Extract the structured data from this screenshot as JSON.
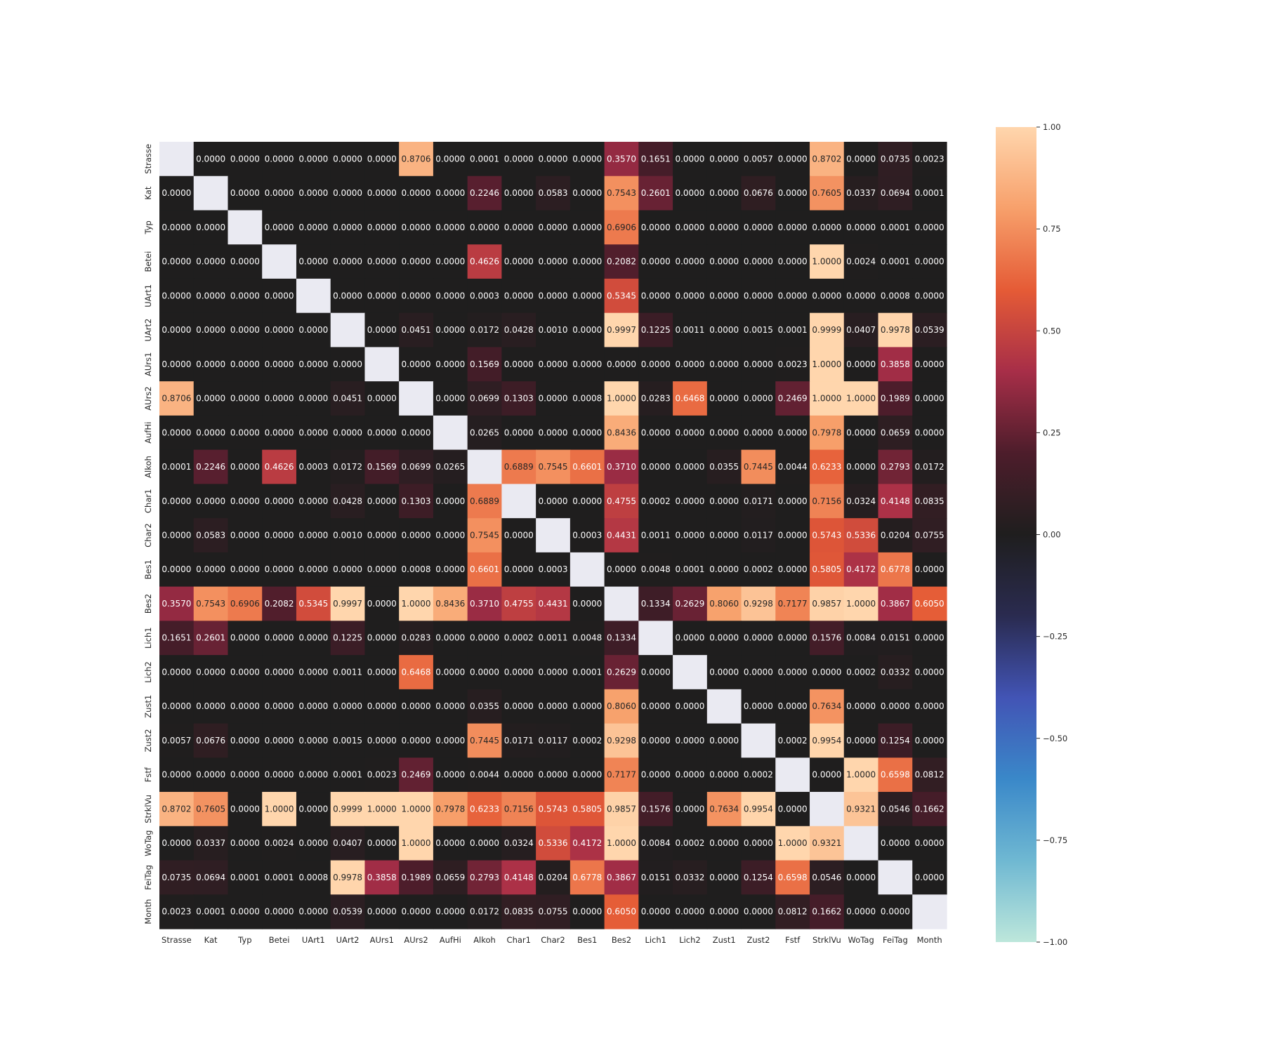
{
  "chart_data": {
    "type": "heatmap",
    "title": "",
    "xlabel": "",
    "ylabel": "",
    "labels": [
      "Strasse",
      "Kat",
      "Typ",
      "Betei",
      "UArt1",
      "UArt2",
      "AUrs1",
      "AUrs2",
      "AufHi",
      "Alkoh",
      "Char1",
      "Char2",
      "Bes1",
      "Bes2",
      "Lich1",
      "Lich2",
      "Zust1",
      "Zust2",
      "Fstf",
      "StrklVu",
      "WoTag",
      "FeiTag",
      "Month"
    ],
    "matrix": [
      [
        null,
        0.0,
        0.0,
        0.0,
        0.0,
        0.0,
        0.0,
        0.8706,
        0.0,
        0.0001,
        0.0,
        0.0,
        0.0,
        0.357,
        0.1651,
        0.0,
        0.0,
        0.0057,
        0.0,
        0.8702,
        0.0,
        0.0735,
        0.0023
      ],
      [
        0.0,
        null,
        0.0,
        0.0,
        0.0,
        0.0,
        0.0,
        0.0,
        0.0,
        0.2246,
        0.0,
        0.0583,
        0.0,
        0.7543,
        0.2601,
        0.0,
        0.0,
        0.0676,
        0.0,
        0.7605,
        0.0337,
        0.0694,
        0.0001
      ],
      [
        0.0,
        0.0,
        null,
        0.0,
        0.0,
        0.0,
        0.0,
        0.0,
        0.0,
        0.0,
        0.0,
        0.0,
        0.0,
        0.6906,
        0.0,
        0.0,
        0.0,
        0.0,
        0.0,
        0.0,
        0.0,
        0.0001,
        0.0
      ],
      [
        0.0,
        0.0,
        0.0,
        null,
        0.0,
        0.0,
        0.0,
        0.0,
        0.0,
        0.4626,
        0.0,
        0.0,
        0.0,
        0.2082,
        0.0,
        0.0,
        0.0,
        0.0,
        0.0,
        1.0,
        0.0024,
        0.0001,
        0.0
      ],
      [
        0.0,
        0.0,
        0.0,
        0.0,
        null,
        0.0,
        0.0,
        0.0,
        0.0,
        0.0003,
        0.0,
        0.0,
        0.0,
        0.5345,
        0.0,
        0.0,
        0.0,
        0.0,
        0.0,
        0.0,
        0.0,
        0.0008,
        0.0
      ],
      [
        0.0,
        0.0,
        0.0,
        0.0,
        0.0,
        null,
        0.0,
        0.0451,
        0.0,
        0.0172,
        0.0428,
        0.001,
        0.0,
        0.9997,
        0.1225,
        0.0011,
        0.0,
        0.0015,
        0.0001,
        0.9999,
        0.0407,
        0.9978,
        0.0539
      ],
      [
        0.0,
        0.0,
        0.0,
        0.0,
        0.0,
        0.0,
        null,
        0.0,
        0.0,
        0.1569,
        0.0,
        0.0,
        0.0,
        0.0,
        0.0,
        0.0,
        0.0,
        0.0,
        0.0023,
        1.0,
        0.0,
        0.3858,
        0.0
      ],
      [
        0.8706,
        0.0,
        0.0,
        0.0,
        0.0,
        0.0451,
        0.0,
        null,
        0.0,
        0.0699,
        0.1303,
        0.0,
        0.0008,
        1.0,
        0.0283,
        0.6468,
        0.0,
        0.0,
        0.2469,
        1.0,
        1.0,
        0.1989,
        0.0
      ],
      [
        0.0,
        0.0,
        0.0,
        0.0,
        0.0,
        0.0,
        0.0,
        0.0,
        null,
        0.0265,
        0.0,
        0.0,
        0.0,
        0.8436,
        0.0,
        0.0,
        0.0,
        0.0,
        0.0,
        0.7978,
        0.0,
        0.0659,
        0.0
      ],
      [
        0.0001,
        0.2246,
        0.0,
        0.4626,
        0.0003,
        0.0172,
        0.1569,
        0.0699,
        0.0265,
        null,
        0.6889,
        0.7545,
        0.6601,
        0.371,
        0.0,
        0.0,
        0.0355,
        0.7445,
        0.0044,
        0.6233,
        0.0,
        0.2793,
        0.0172
      ],
      [
        0.0,
        0.0,
        0.0,
        0.0,
        0.0,
        0.0428,
        0.0,
        0.1303,
        0.0,
        0.6889,
        null,
        0.0,
        0.0,
        0.4755,
        0.0002,
        0.0,
        0.0,
        0.0171,
        0.0,
        0.7156,
        0.0324,
        0.4148,
        0.0835
      ],
      [
        0.0,
        0.0583,
        0.0,
        0.0,
        0.0,
        0.001,
        0.0,
        0.0,
        0.0,
        0.7545,
        0.0,
        null,
        0.0003,
        0.4431,
        0.0011,
        0.0,
        0.0,
        0.0117,
        0.0,
        0.5743,
        0.5336,
        0.0204,
        0.0755
      ],
      [
        0.0,
        0.0,
        0.0,
        0.0,
        0.0,
        0.0,
        0.0,
        0.0008,
        0.0,
        0.6601,
        0.0,
        0.0003,
        null,
        0.0,
        0.0048,
        0.0001,
        0.0,
        0.0002,
        0.0,
        0.5805,
        0.4172,
        0.6778,
        0.0
      ],
      [
        0.357,
        0.7543,
        0.6906,
        0.2082,
        0.5345,
        0.9997,
        0.0,
        1.0,
        0.8436,
        0.371,
        0.4755,
        0.4431,
        0.0,
        null,
        0.1334,
        0.2629,
        0.806,
        0.9298,
        0.7177,
        0.9857,
        1.0,
        0.3867,
        0.605
      ],
      [
        0.1651,
        0.2601,
        0.0,
        0.0,
        0.0,
        0.1225,
        0.0,
        0.0283,
        0.0,
        0.0,
        0.0002,
        0.0011,
        0.0048,
        0.1334,
        null,
        0.0,
        0.0,
        0.0,
        0.0,
        0.1576,
        0.0084,
        0.0151,
        0.0
      ],
      [
        0.0,
        0.0,
        0.0,
        0.0,
        0.0,
        0.0011,
        0.0,
        0.6468,
        0.0,
        0.0,
        0.0,
        0.0,
        0.0001,
        0.2629,
        0.0,
        null,
        0.0,
        0.0,
        0.0,
        0.0,
        0.0002,
        0.0332,
        0.0
      ],
      [
        0.0,
        0.0,
        0.0,
        0.0,
        0.0,
        0.0,
        0.0,
        0.0,
        0.0,
        0.0355,
        0.0,
        0.0,
        0.0,
        0.806,
        0.0,
        0.0,
        null,
        0.0,
        0.0,
        0.7634,
        0.0,
        0.0,
        0.0
      ],
      [
        0.0057,
        0.0676,
        0.0,
        0.0,
        0.0,
        0.0015,
        0.0,
        0.0,
        0.0,
        0.7445,
        0.0171,
        0.0117,
        0.0002,
        0.9298,
        0.0,
        0.0,
        0.0,
        null,
        0.0002,
        0.9954,
        0.0,
        0.1254,
        0.0
      ],
      [
        0.0,
        0.0,
        0.0,
        0.0,
        0.0,
        0.0001,
        0.0023,
        0.2469,
        0.0,
        0.0044,
        0.0,
        0.0,
        0.0,
        0.7177,
        0.0,
        0.0,
        0.0,
        0.0002,
        null,
        0.0,
        1.0,
        0.6598,
        0.0812
      ],
      [
        0.8702,
        0.7605,
        0.0,
        1.0,
        0.0,
        0.9999,
        1.0,
        1.0,
        0.7978,
        0.6233,
        0.7156,
        0.5743,
        0.5805,
        0.9857,
        0.1576,
        0.0,
        0.7634,
        0.9954,
        0.0,
        null,
        0.9321,
        0.0546,
        0.1662
      ],
      [
        0.0,
        0.0337,
        0.0,
        0.0024,
        0.0,
        0.0407,
        0.0,
        1.0,
        0.0,
        0.0,
        0.0324,
        0.5336,
        0.4172,
        1.0,
        0.0084,
        0.0002,
        0.0,
        0.0,
        1.0,
        0.9321,
        null,
        0.0,
        0.0
      ],
      [
        0.0735,
        0.0694,
        0.0001,
        0.0001,
        0.0008,
        0.9978,
        0.3858,
        0.1989,
        0.0659,
        0.2793,
        0.4148,
        0.0204,
        0.6778,
        0.3867,
        0.0151,
        0.0332,
        0.0,
        0.1254,
        0.6598,
        0.0546,
        0.0,
        null,
        0.0
      ],
      [
        0.0023,
        0.0001,
        0.0,
        0.0,
        0.0,
        0.0539,
        0.0,
        0.0,
        0.0,
        0.0172,
        0.0835,
        0.0755,
        0.0,
        0.605,
        0.0,
        0.0,
        0.0,
        0.0,
        0.0812,
        0.1662,
        0.0,
        0.0,
        null
      ]
    ],
    "value_format": "4 decimals",
    "missing_cell_color": "#eaeaf2",
    "colorbar": {
      "vmin": -1.0,
      "vmax": 1.0,
      "ticks": [
        1.0,
        0.75,
        0.5,
        0.25,
        0.0,
        -0.25,
        -0.5,
        -0.75,
        -1.0
      ],
      "tick_labels": [
        "1.00",
        "0.75",
        "0.50",
        "0.25",
        "0.00",
        "−0.25",
        "−0.50",
        "−0.75",
        "−1.00"
      ],
      "colormap": "icefire",
      "colormap_stops": [
        "#bde7db",
        "#6fb8d2",
        "#3a88c9",
        "#4254b5",
        "#2a2b50",
        "#1f1e1e",
        "#4d1d2b",
        "#a72e48",
        "#e55b36",
        "#f7a06b",
        "#ffd6ad"
      ]
    },
    "grid": false,
    "legend": "colorbar-right"
  }
}
